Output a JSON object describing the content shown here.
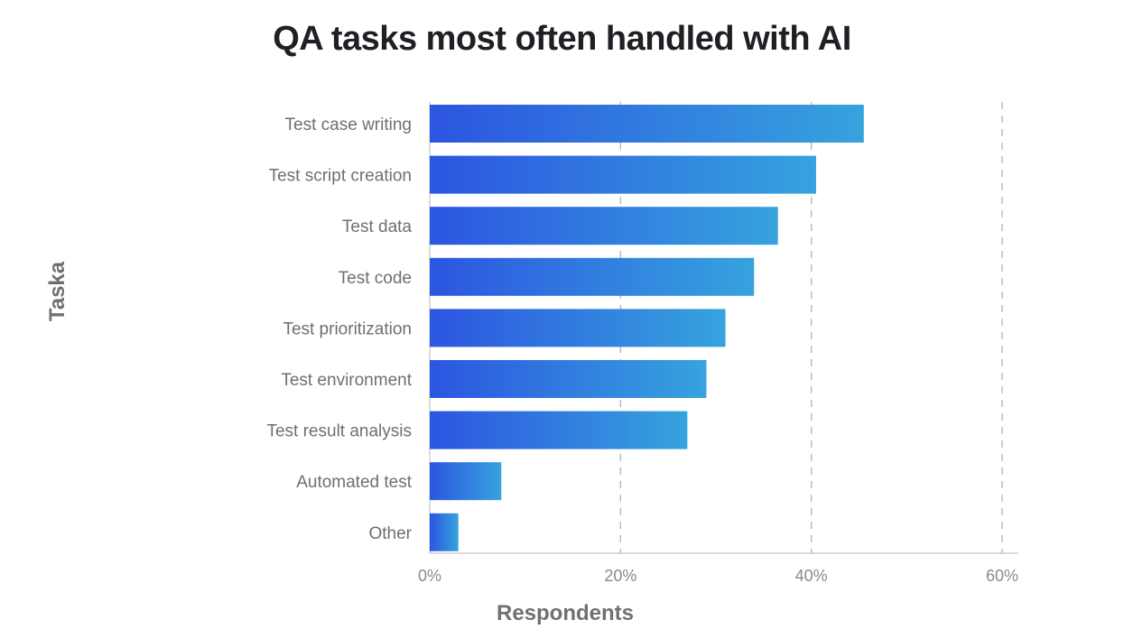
{
  "chart_data": {
    "type": "bar",
    "orientation": "horizontal",
    "title": "QA tasks most often handled with AI",
    "xlabel": "Respondents",
    "ylabel": "Taska",
    "categories": [
      "Test case writing",
      "Test script creation",
      "Test data",
      "Test code",
      "Test prioritization",
      "Test environment",
      "Test result analysis",
      "Automated test",
      "Other"
    ],
    "values": [
      45.5,
      40.5,
      36.5,
      34,
      31,
      29,
      27,
      7.5,
      3
    ],
    "xlim": [
      0,
      60
    ],
    "xticks": [
      0,
      20,
      40,
      60
    ],
    "xtick_labels": [
      "0%",
      "20%",
      "40%",
      "60%"
    ],
    "grid": "vertical dashed",
    "legend": "none",
    "colors": {
      "bar_start": "#2c55e0",
      "bar_end": "#36a3de",
      "grid": "#b3b3b3",
      "axis": "#c4c4c4"
    }
  }
}
